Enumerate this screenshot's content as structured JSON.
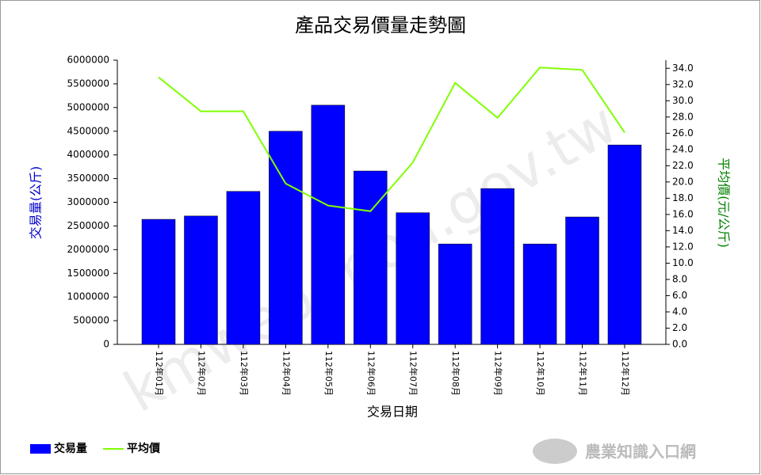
{
  "chart_data": {
    "type": "bar",
    "title": "產品交易價量走勢圖",
    "x_label": "交易日期",
    "y_label": "交易量(公斤)",
    "y2_label": "平均價(元/公斤)",
    "watermark": "kmweb.moa.gov.tw",
    "logo": "農業知識入口網",
    "categories": [
      "112年01月",
      "112年02月",
      "112年03月",
      "112年04月",
      "112年05月",
      "112年06月",
      "112年07月",
      "112年08月",
      "112年09月",
      "112年10月",
      "112年11月",
      "112年12月"
    ],
    "series": [
      {
        "name": "交易量",
        "type": "bar",
        "color": "#0000ff",
        "values": [
          2640000,
          2710000,
          3230000,
          4500000,
          5050000,
          3660000,
          2780000,
          2120000,
          3290000,
          2120000,
          2690000,
          4210000
        ]
      },
      {
        "name": "平均價",
        "type": "line",
        "axis": "y2",
        "color": "#80ff00",
        "values": [
          32.9,
          28.7,
          28.7,
          19.8,
          17.1,
          16.4,
          22.4,
          32.2,
          27.9,
          34.1,
          33.8,
          26.1
        ]
      }
    ],
    "ylim": [
      0,
      6000000
    ],
    "yticks": [
      0,
      500000,
      1000000,
      1500000,
      2000000,
      2500000,
      3000000,
      3500000,
      4000000,
      4500000,
      5000000,
      5500000,
      6000000
    ],
    "y2lim": [
      0,
      35
    ],
    "y2ticks": [
      {
        "value": 0,
        "label": "0.0"
      },
      {
        "value": 2,
        "label": "2.0"
      },
      {
        "value": 4,
        "label": "4.0"
      },
      {
        "value": 6,
        "label": "6.0"
      },
      {
        "value": 8,
        "label": "8.0"
      },
      {
        "value": 10,
        "label": "10.0"
      },
      {
        "value": 12,
        "label": "12.0"
      },
      {
        "value": 14,
        "label": "14.0"
      },
      {
        "value": 16,
        "label": "16.0"
      },
      {
        "value": 18,
        "label": "18.0"
      },
      {
        "value": 20,
        "label": "20.0"
      },
      {
        "value": 22,
        "label": "22.0"
      },
      {
        "value": 24,
        "label": "24.0"
      },
      {
        "value": 26,
        "label": "26.0"
      },
      {
        "value": 28,
        "label": "28.0"
      },
      {
        "value": 30,
        "label": "30.0"
      },
      {
        "value": 32,
        "label": "32.0"
      },
      {
        "value": 34,
        "label": "34.0"
      }
    ],
    "legend": "bottom-left",
    "grid": false
  }
}
